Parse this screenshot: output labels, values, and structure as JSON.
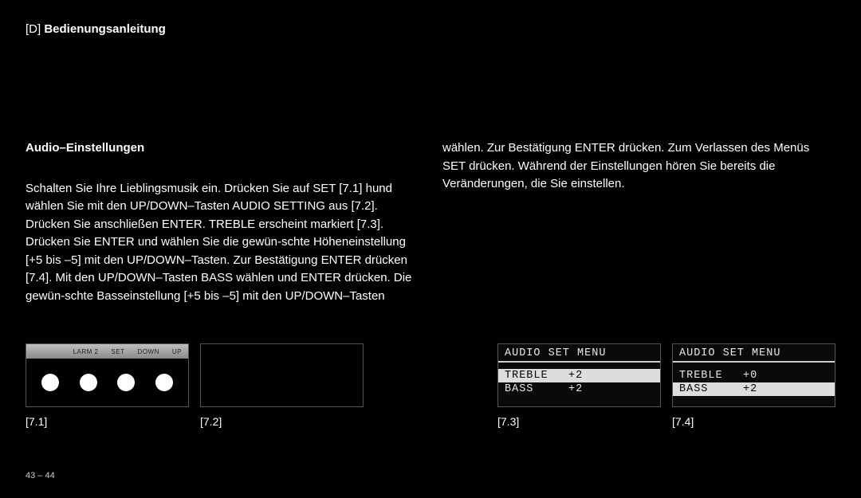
{
  "header": {
    "tag": "[D]",
    "title": "Bedienungsanleitung"
  },
  "section_title": "Audio–Einstellungen",
  "left_text": "Schalten Sie Ihre Lieblingsmusik ein. Drücken Sie auf SET [7.1] hund wählen Sie mit den UP/DOWN–Tasten AUDIO SETTING aus [7.2]. Drücken Sie anschließen ENTER. TREBLE erscheint markiert [7.3]. Drücken Sie ENTER und wählen Sie die gewün-schte Höheneinstellung [+5 bis –5] mit den UP/DOWN–Tasten. Zur Bestätigung ENTER drücken [7.4]. Mit den UP/DOWN–Tasten BASS wählen und ENTER drücken. Die gewün-schte Basseinstellung [+5 bis –5] mit den UP/DOWN–Tasten",
  "right_text": "wählen. Zur Bestätigung ENTER drücken. Zum Verlassen des Menüs SET drücken. Während der Einstellungen hören Sie bereits die Veränderungen, die Sie einstellen.",
  "fig71": {
    "label": "[7.1]",
    "buttons": [
      "LARM 2",
      "SET",
      "DOWN",
      "UP"
    ]
  },
  "fig72": {
    "label": "[7.2]"
  },
  "fig73": {
    "label": "[7.3]",
    "menu_title": "AUDIO SET MENU",
    "rows": [
      {
        "label": "TREBLE",
        "value": "+2",
        "selected": true
      },
      {
        "label": "BASS",
        "value": "+2",
        "selected": false
      }
    ]
  },
  "fig74": {
    "label": "[7.4]",
    "menu_title": "AUDIO SET MENU",
    "rows": [
      {
        "label": "TREBLE",
        "value": "+0",
        "selected": false
      },
      {
        "label": "BASS",
        "value": "+2",
        "selected": true
      }
    ]
  },
  "page_number": "43 – 44",
  "colors": {
    "bg": "#000000",
    "fg": "#ffffff",
    "border": "#555555",
    "sel_bg": "#dddddd"
  }
}
